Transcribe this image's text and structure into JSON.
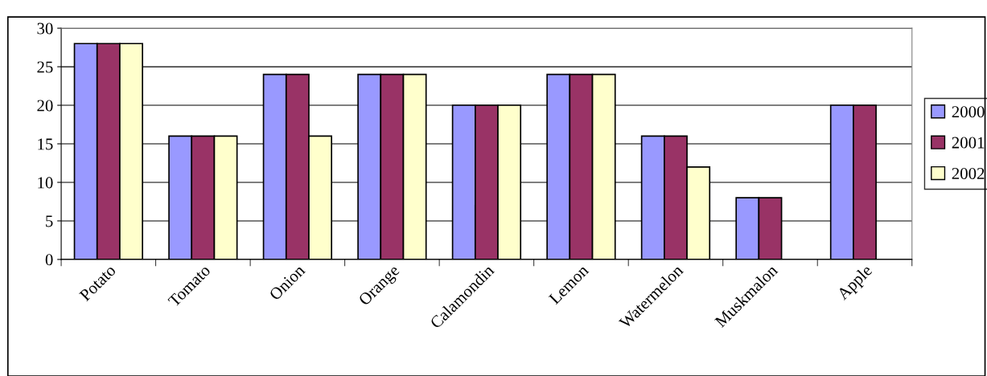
{
  "chart_data": {
    "type": "bar",
    "categories": [
      "Potato",
      "Tomato",
      "Onion",
      "Orange",
      "Calamondin",
      "Lemon",
      "Watermelon",
      "Muskmalon",
      "Apple"
    ],
    "series": [
      {
        "name": "2000",
        "color": "#9999ff",
        "values": [
          28,
          16,
          24,
          24,
          20,
          24,
          16,
          8,
          20
        ]
      },
      {
        "name": "2001",
        "color": "#993366",
        "values": [
          28,
          16,
          24,
          24,
          20,
          24,
          16,
          8,
          20
        ]
      },
      {
        "name": "2002",
        "color": "#ffffcc",
        "values": [
          28,
          16,
          16,
          24,
          20,
          24,
          12,
          null,
          null
        ]
      }
    ],
    "ylim": [
      0,
      30
    ],
    "yticks": [
      0,
      5,
      10,
      15,
      20,
      25,
      30
    ],
    "grid": "y",
    "legend": "right"
  }
}
